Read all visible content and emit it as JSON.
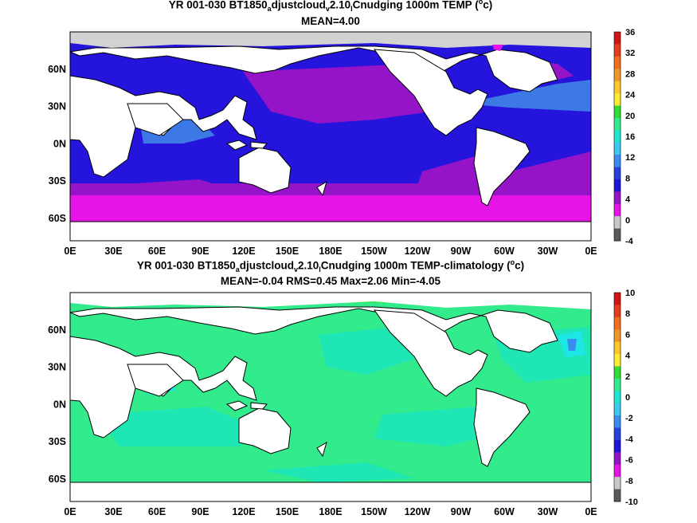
{
  "panels": [
    {
      "title_parts": [
        "YR 001-030 BT1850",
        "a",
        "djustcloud",
        "v",
        "2.10",
        "l",
        "Cnudging 1000m TEMP (",
        "o",
        "c)"
      ],
      "subtitle": "MEAN=4.00",
      "colorbar_labels": [
        "36",
        "32",
        "28",
        "24",
        "20",
        "16",
        "12",
        "8",
        "4",
        "0",
        "-4"
      ],
      "colorbar_colors": [
        "#d21414",
        "#e63c1e",
        "#f06e1e",
        "#f09628",
        "#ffc828",
        "#ffeb32",
        "#32dc32",
        "#32eb8c",
        "#1ee6d2",
        "#3cc8f0",
        "#3c8cf0",
        "#2841dc",
        "#1e14dc",
        "#9614c8",
        "#e614e6",
        "#c8c8c8",
        "#5a5a5a"
      ]
    },
    {
      "title_parts": [
        "YR 001-030 BT1850",
        "a",
        "djustcloud",
        "v",
        "2.10",
        "l",
        "Cnudging 1000m TEMP-climatology (",
        "o",
        "c)"
      ],
      "subtitle": "MEAN=-0.04   RMS=0.45   Max=2.06   Min=-4.05",
      "colorbar_labels": [
        "10",
        "8",
        "6",
        "4",
        "2",
        "0",
        "-2",
        "-4",
        "-6",
        "-8",
        "-10"
      ],
      "colorbar_colors": [
        "#d21414",
        "#e63c1e",
        "#f06e1e",
        "#f09628",
        "#ffc828",
        "#ffeb32",
        "#32dc32",
        "#32eb8c",
        "#1ee6d2",
        "#3cc8f0",
        "#3c8cf0",
        "#2841dc",
        "#1e14dc",
        "#9614c8",
        "#e614e6",
        "#c8c8c8",
        "#5a5a5a"
      ]
    }
  ],
  "x_ticks": [
    "0E",
    "30E",
    "60E",
    "90E",
    "120E",
    "150E",
    "180E",
    "150W",
    "120W",
    "90W",
    "60W",
    "30W",
    "0E"
  ],
  "y_ticks": [
    "60N",
    "30N",
    "0N",
    "30S",
    "60S"
  ],
  "colors": {
    "land": "#ffffff",
    "ice": "#d2d2d2",
    "coast": "#000000"
  }
}
